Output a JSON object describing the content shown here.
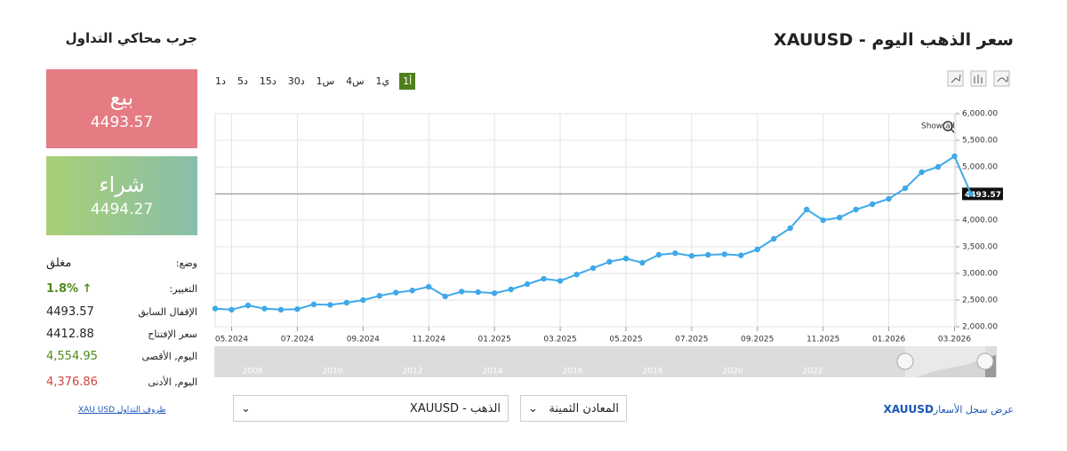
{
  "simulator": {
    "title": "جرب محاكي التداول",
    "sell": {
      "label": "بيع",
      "price": "4493.57"
    },
    "buy": {
      "label": "شراء",
      "price": "4494.27"
    },
    "stats": [
      {
        "label": "وضع:",
        "value": "مغلق"
      },
      {
        "label": "التغيير:",
        "value": "1.8%"
      },
      {
        "label": "الإقفال السابق",
        "value": "4493.57"
      },
      {
        "label": "سعر الإفتتاح",
        "value": "4412.88"
      },
      {
        "label": "اليوم, الأقصى",
        "value": "4,554.95"
      },
      {
        "label": "اليوم, الأدنى",
        "value": "4,376.86"
      }
    ],
    "link": "XAU USD ظروف التداول"
  },
  "header": {
    "title": "سعر الذهب اليوم - XAUUSD"
  },
  "timeframes": [
    "1د",
    "5د",
    "15د",
    "30د",
    "1س",
    "4س",
    "1ي",
    "1أ"
  ],
  "show_all": "Show all",
  "chart_data": {
    "type": "line",
    "color": "#3fa9e8",
    "categories": [
      null,
      "05.2024",
      null,
      null,
      null,
      "07.2024",
      null,
      null,
      null,
      "09.2024",
      null,
      null,
      null,
      "11.2024",
      null,
      null,
      null,
      "01.2025",
      null,
      null,
      null,
      "03.2025",
      null,
      null,
      null,
      "05.2025",
      null,
      null,
      null,
      "07.2025",
      null,
      null,
      null,
      "09.2025",
      null,
      null,
      null,
      "11.2025",
      null,
      null,
      null,
      "01.2026",
      null,
      null,
      null,
      "03.2026",
      null
    ],
    "values": [
      2340,
      2320,
      2400,
      2340,
      2320,
      2330,
      2420,
      2410,
      2450,
      2500,
      2580,
      2640,
      2680,
      2750,
      2570,
      2660,
      2650,
      2630,
      2700,
      2800,
      2900,
      2860,
      2980,
      3100,
      3220,
      3280,
      3200,
      3350,
      3380,
      3330,
      3350,
      3360,
      3340,
      3450,
      3650,
      3850,
      4200,
      4000,
      4050,
      4200,
      4300,
      4400,
      4600,
      4900,
      5000,
      5200,
      4493.57
    ],
    "last_price": 4493.57,
    "ylim": [
      2000,
      6000
    ],
    "yticks": [
      {
        "value": 2000,
        "label": "2,000.00"
      },
      {
        "value": 2500,
        "label": "2,500.00"
      },
      {
        "value": 3000,
        "label": "3,000.00"
      },
      {
        "value": 3500,
        "label": "3,500.00"
      },
      {
        "value": 4000,
        "label": "4,000.00"
      },
      {
        "value": 4500,
        "label": "4,500.00"
      },
      {
        "value": 5000,
        "label": "5,000.00"
      },
      {
        "value": 5500,
        "label": "5,500.00"
      },
      {
        "value": 6000,
        "label": "6,000.00"
      }
    ],
    "grid": true
  },
  "navigator_years": [
    "2008",
    "2010",
    "2012",
    "2014",
    "2016",
    "2018",
    "2020",
    "2022"
  ],
  "selectors": {
    "instrument": "XAUUSD - الذهب",
    "group": "المعادن الثمينة"
  },
  "history_link": {
    "code": "XAUUSD",
    "text": "عرض سجل الأسعار"
  }
}
